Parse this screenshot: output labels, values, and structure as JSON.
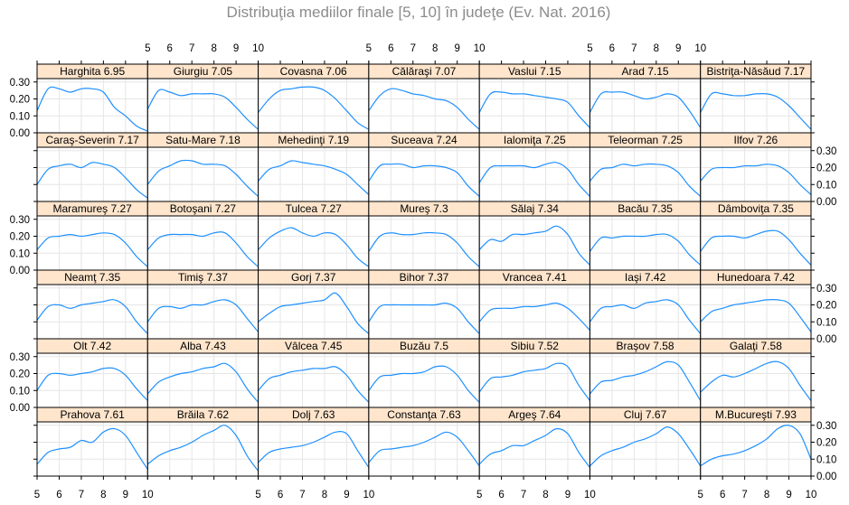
{
  "title": "Distribuţia mediilor finale [5, 10] în judeţe (Ev. Nat. 2016)",
  "colors": {
    "line": "#1e90ff",
    "strip": "#ffe5cc",
    "grid": "#e6e6e6",
    "border": "#000000",
    "title": "#8c8c8c"
  },
  "chart_data": {
    "type": "line",
    "layout": {
      "columns": 7,
      "rows": 6,
      "order": "left-to-right, top-to-bottom"
    },
    "xlim": [
      5,
      10
    ],
    "ylim": [
      0,
      0.32
    ],
    "x_ticks": [
      "5",
      "6",
      "7",
      "8",
      "9",
      "10"
    ],
    "y_ticks": [
      "0.00",
      "0.10",
      "0.20",
      "0.30"
    ],
    "x": [
      5,
      5.5,
      6,
      6.5,
      7,
      7.5,
      8,
      8.5,
      9,
      9.5,
      10
    ],
    "panels": [
      {
        "label": "Harghita 6.95",
        "values": [
          0.13,
          0.26,
          0.26,
          0.24,
          0.26,
          0.26,
          0.24,
          0.15,
          0.1,
          0.04,
          0.01
        ]
      },
      {
        "label": "Giurgiu 7.05",
        "values": [
          0.14,
          0.25,
          0.24,
          0.22,
          0.23,
          0.23,
          0.23,
          0.21,
          0.15,
          0.08,
          0.02
        ]
      },
      {
        "label": "Covasna 7.06",
        "values": [
          0.12,
          0.2,
          0.25,
          0.26,
          0.27,
          0.27,
          0.25,
          0.2,
          0.13,
          0.06,
          0.02
        ]
      },
      {
        "label": "Călăraşi 7.07",
        "values": [
          0.13,
          0.22,
          0.26,
          0.25,
          0.23,
          0.22,
          0.2,
          0.19,
          0.15,
          0.08,
          0.02
        ]
      },
      {
        "label": "Vaslui 7.15",
        "values": [
          0.12,
          0.23,
          0.24,
          0.23,
          0.23,
          0.22,
          0.21,
          0.2,
          0.18,
          0.1,
          0.03
        ]
      },
      {
        "label": "Arad 7.15",
        "values": [
          0.12,
          0.23,
          0.24,
          0.24,
          0.22,
          0.2,
          0.21,
          0.23,
          0.21,
          0.13,
          0.03
        ]
      },
      {
        "label": "Bistriţa-Năsăud 7.17",
        "values": [
          0.12,
          0.23,
          0.23,
          0.22,
          0.22,
          0.23,
          0.23,
          0.21,
          0.16,
          0.09,
          0.02
        ]
      },
      {
        "label": "Caraş-Severin 7.17",
        "values": [
          0.1,
          0.19,
          0.21,
          0.22,
          0.2,
          0.23,
          0.22,
          0.2,
          0.14,
          0.07,
          0.02
        ]
      },
      {
        "label": "Satu-Mare 7.18",
        "values": [
          0.1,
          0.18,
          0.21,
          0.24,
          0.24,
          0.22,
          0.22,
          0.21,
          0.16,
          0.09,
          0.03
        ]
      },
      {
        "label": "Mehedinţi 7.19",
        "values": [
          0.12,
          0.19,
          0.21,
          0.24,
          0.23,
          0.22,
          0.21,
          0.19,
          0.16,
          0.1,
          0.04
        ]
      },
      {
        "label": "Suceava 7.24",
        "values": [
          0.12,
          0.21,
          0.22,
          0.22,
          0.2,
          0.21,
          0.21,
          0.2,
          0.17,
          0.09,
          0.03
        ]
      },
      {
        "label": "Ialomiţa 7.25",
        "values": [
          0.11,
          0.2,
          0.21,
          0.21,
          0.21,
          0.2,
          0.22,
          0.23,
          0.19,
          0.1,
          0.03
        ]
      },
      {
        "label": "Teleorman 7.25",
        "values": [
          0.12,
          0.19,
          0.2,
          0.22,
          0.21,
          0.22,
          0.22,
          0.21,
          0.17,
          0.09,
          0.03
        ]
      },
      {
        "label": "Ilfov 7.26",
        "values": [
          0.12,
          0.19,
          0.2,
          0.2,
          0.21,
          0.21,
          0.22,
          0.21,
          0.17,
          0.1,
          0.04
        ]
      },
      {
        "label": "Maramureş 7.27",
        "values": [
          0.12,
          0.19,
          0.2,
          0.21,
          0.2,
          0.21,
          0.22,
          0.21,
          0.16,
          0.08,
          0.02
        ]
      },
      {
        "label": "Botoşani 7.27",
        "values": [
          0.12,
          0.19,
          0.21,
          0.21,
          0.21,
          0.2,
          0.22,
          0.22,
          0.16,
          0.08,
          0.02
        ]
      },
      {
        "label": "Tulcea 7.27",
        "values": [
          0.12,
          0.19,
          0.23,
          0.25,
          0.22,
          0.2,
          0.22,
          0.21,
          0.15,
          0.07,
          0.02
        ]
      },
      {
        "label": "Mureş 7.3",
        "values": [
          0.11,
          0.2,
          0.22,
          0.21,
          0.21,
          0.22,
          0.22,
          0.21,
          0.16,
          0.08,
          0.02
        ]
      },
      {
        "label": "Sălaj 7.34",
        "values": [
          0.12,
          0.18,
          0.17,
          0.21,
          0.21,
          0.22,
          0.23,
          0.26,
          0.21,
          0.1,
          0.03
        ]
      },
      {
        "label": "Bacău 7.35",
        "values": [
          0.11,
          0.19,
          0.19,
          0.2,
          0.2,
          0.2,
          0.21,
          0.21,
          0.17,
          0.09,
          0.03
        ]
      },
      {
        "label": "Dâmboviţa 7.35",
        "values": [
          0.11,
          0.19,
          0.2,
          0.2,
          0.19,
          0.21,
          0.23,
          0.23,
          0.18,
          0.1,
          0.03
        ]
      },
      {
        "label": "Neamţ 7.35",
        "values": [
          0.11,
          0.19,
          0.2,
          0.18,
          0.2,
          0.21,
          0.22,
          0.23,
          0.19,
          0.1,
          0.03
        ]
      },
      {
        "label": "Timiş 7.37",
        "values": [
          0.1,
          0.18,
          0.19,
          0.18,
          0.2,
          0.2,
          0.22,
          0.23,
          0.2,
          0.12,
          0.04
        ]
      },
      {
        "label": "Gorj 7.37",
        "values": [
          0.1,
          0.15,
          0.19,
          0.2,
          0.21,
          0.22,
          0.23,
          0.27,
          0.19,
          0.09,
          0.03
        ]
      },
      {
        "label": "Bihor 7.37",
        "values": [
          0.1,
          0.19,
          0.2,
          0.2,
          0.2,
          0.2,
          0.2,
          0.21,
          0.18,
          0.1,
          0.03
        ]
      },
      {
        "label": "Vrancea 7.41",
        "values": [
          0.1,
          0.17,
          0.18,
          0.18,
          0.19,
          0.19,
          0.2,
          0.21,
          0.18,
          0.12,
          0.05
        ]
      },
      {
        "label": "Iaşi 7.42",
        "values": [
          0.1,
          0.18,
          0.19,
          0.2,
          0.18,
          0.21,
          0.22,
          0.23,
          0.2,
          0.11,
          0.03
        ]
      },
      {
        "label": "Hunedoara 7.42",
        "values": [
          0.1,
          0.16,
          0.18,
          0.2,
          0.21,
          0.22,
          0.23,
          0.23,
          0.21,
          0.13,
          0.04
        ]
      },
      {
        "label": "Olt 7.42",
        "values": [
          0.1,
          0.19,
          0.2,
          0.19,
          0.2,
          0.21,
          0.23,
          0.23,
          0.19,
          0.11,
          0.04
        ]
      },
      {
        "label": "Alba 7.43",
        "values": [
          0.08,
          0.15,
          0.18,
          0.2,
          0.21,
          0.23,
          0.24,
          0.26,
          0.21,
          0.11,
          0.03
        ]
      },
      {
        "label": "Vâlcea 7.45",
        "values": [
          0.1,
          0.17,
          0.19,
          0.21,
          0.22,
          0.23,
          0.23,
          0.24,
          0.19,
          0.1,
          0.03
        ]
      },
      {
        "label": "Buzău 7.5",
        "values": [
          0.1,
          0.18,
          0.19,
          0.2,
          0.2,
          0.21,
          0.24,
          0.24,
          0.19,
          0.1,
          0.03
        ]
      },
      {
        "label": "Sibiu 7.52",
        "values": [
          0.09,
          0.17,
          0.18,
          0.19,
          0.21,
          0.22,
          0.23,
          0.26,
          0.24,
          0.13,
          0.04
        ]
      },
      {
        "label": "Braşov 7.58",
        "values": [
          0.08,
          0.15,
          0.16,
          0.18,
          0.19,
          0.21,
          0.24,
          0.27,
          0.25,
          0.15,
          0.04
        ]
      },
      {
        "label": "Galaţi 7.58",
        "values": [
          0.09,
          0.15,
          0.19,
          0.18,
          0.2,
          0.23,
          0.26,
          0.27,
          0.23,
          0.13,
          0.04
        ]
      },
      {
        "label": "Prahova 7.61",
        "values": [
          0.07,
          0.14,
          0.16,
          0.17,
          0.21,
          0.2,
          0.26,
          0.28,
          0.24,
          0.14,
          0.04
        ]
      },
      {
        "label": "Brăila 7.62",
        "values": [
          0.07,
          0.12,
          0.15,
          0.17,
          0.2,
          0.24,
          0.27,
          0.3,
          0.24,
          0.12,
          0.03
        ]
      },
      {
        "label": "Dolj 7.63",
        "values": [
          0.08,
          0.14,
          0.16,
          0.17,
          0.18,
          0.2,
          0.23,
          0.26,
          0.25,
          0.15,
          0.05
        ]
      },
      {
        "label": "Constanţa 7.63",
        "values": [
          0.08,
          0.15,
          0.16,
          0.17,
          0.18,
          0.2,
          0.23,
          0.26,
          0.23,
          0.15,
          0.06
        ]
      },
      {
        "label": "Argeş 7.64",
        "values": [
          0.07,
          0.13,
          0.15,
          0.18,
          0.18,
          0.21,
          0.24,
          0.28,
          0.25,
          0.14,
          0.05
        ]
      },
      {
        "label": "Cluj 7.67",
        "values": [
          0.06,
          0.12,
          0.15,
          0.17,
          0.2,
          0.22,
          0.25,
          0.29,
          0.25,
          0.16,
          0.06
        ]
      },
      {
        "label": "M.Bucureşti 7.93",
        "values": [
          0.06,
          0.1,
          0.12,
          0.13,
          0.15,
          0.18,
          0.22,
          0.28,
          0.3,
          0.25,
          0.1
        ]
      }
    ]
  }
}
